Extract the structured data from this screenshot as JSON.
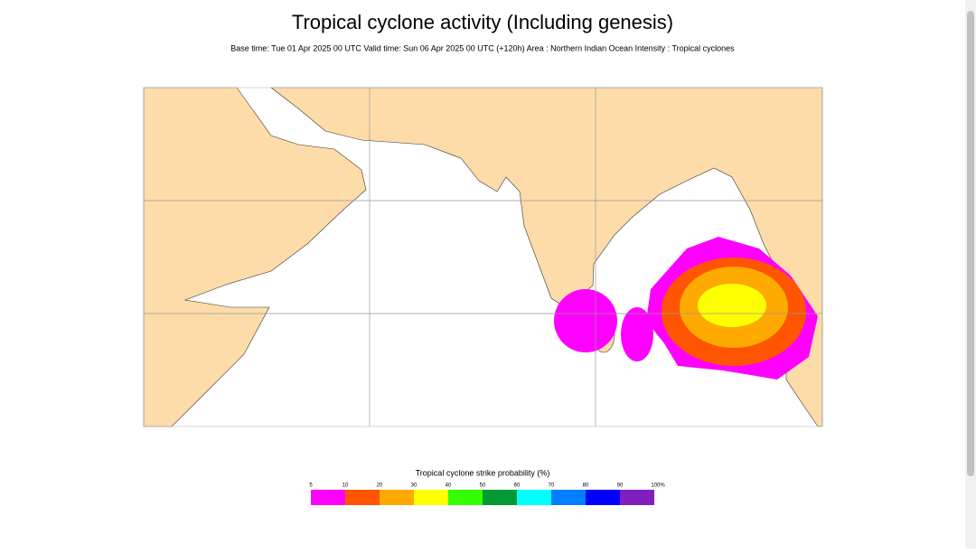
{
  "header": {
    "title": "Tropical cyclone activity (Including genesis)",
    "subtitle": "Base time: Tue 01 Apr 2025 00 UTC Valid time: Sun 06 Apr 2025 00 UTC (+120h) Area : Northern Indian Ocean Intensity : Tropical cyclones"
  },
  "legend": {
    "title": "Tropical cyclone strike probability (%)",
    "ticks": [
      5,
      10,
      20,
      30,
      40,
      50,
      60,
      70,
      80,
      90,
      {
        "value": 100,
        "label": "100%"
      }
    ],
    "colors": [
      "#ff00ff",
      "#ff5500",
      "#ffaa00",
      "#ffff00",
      "#33ff00",
      "#009933",
      "#00ffff",
      "#0080ff",
      "#0000ff",
      "#7f1fbf"
    ]
  }
}
